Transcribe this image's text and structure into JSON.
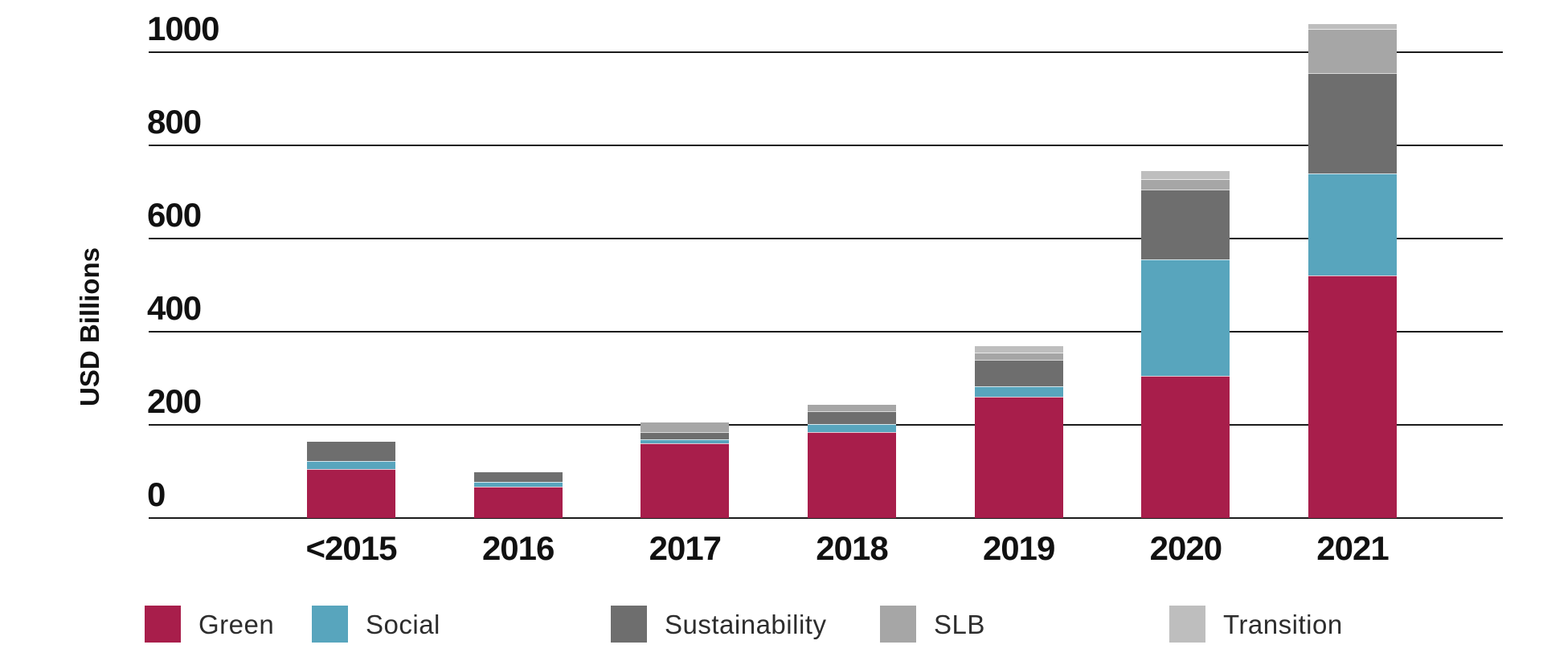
{
  "chart_data": {
    "type": "bar",
    "stacked": true,
    "title": "",
    "xlabel": "",
    "ylabel": "USD Billions",
    "units": "USD Billions",
    "categories": [
      "<2015",
      "2016",
      "2017",
      "2018",
      "2019",
      "2020",
      "2021"
    ],
    "series": [
      {
        "name": "Green",
        "color": "#A81E4B",
        "values": [
          105,
          67,
          160,
          185,
          260,
          305,
          520
        ]
      },
      {
        "name": "Social",
        "color": "#58A5BD",
        "values": [
          18,
          10,
          9,
          17,
          23,
          250,
          220
        ]
      },
      {
        "name": "Sustainability",
        "color": "#6E6E6E",
        "values": [
          40,
          22,
          16,
          28,
          57,
          150,
          215
        ]
      },
      {
        "name": "SLB",
        "color": "#A6A6A6",
        "values": [
          0,
          0,
          20,
          13,
          15,
          23,
          95
        ]
      },
      {
        "name": "Transition",
        "color": "#BEBEBE",
        "values": [
          0,
          0,
          0,
          0,
          14,
          16,
          10
        ]
      }
    ],
    "totals": [
      163,
      99,
      205,
      243,
      369,
      744,
      1060
    ],
    "y_ticks": [
      0,
      200,
      400,
      600,
      800,
      1000
    ],
    "ylim": [
      0,
      1000
    ],
    "grid": "horizontal",
    "legend_position": "bottom",
    "legend_entries": [
      "Green",
      "Social",
      "Sustainability",
      "SLB",
      "Transition"
    ]
  },
  "colors": {
    "background": "#FFFFFF",
    "axis": "#1B1B1B",
    "tick_text": "#111111",
    "legend_text": "#2D2D2D"
  }
}
